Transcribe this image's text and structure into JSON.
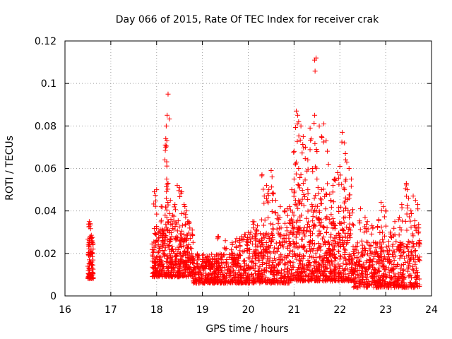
{
  "chart_data": {
    "type": "scatter",
    "title": "Day 066 of 2015, Rate Of TEC Index for receiver crak",
    "xlabel": "GPS time / hours",
    "ylabel": "ROTI / TECUs",
    "xlim": [
      16,
      24
    ],
    "ylim": [
      0,
      0.12
    ],
    "xticks": [
      "16",
      "17",
      "18",
      "19",
      "20",
      "21",
      "22",
      "23",
      "24"
    ],
    "yticks": [
      "0",
      "0.02",
      "0.04",
      "0.06",
      "0.08",
      "0.1",
      "0.12"
    ],
    "xtick_values": [
      16,
      17,
      18,
      19,
      20,
      21,
      22,
      23,
      24
    ],
    "ytick_values": [
      0,
      0.02,
      0.04,
      0.06,
      0.08,
      0.1,
      0.12
    ],
    "grid": true,
    "marker": "+",
    "color": "#ff0000",
    "series": [
      {
        "name": "ROTI",
        "clusters": [
          {
            "x0": 16.5,
            "x1": 16.62,
            "lo": 0.008,
            "hi": 0.028,
            "n": 90,
            "spikes": [
              [
                16.53,
                0.035
              ],
              [
                16.55,
                0.034
              ],
              [
                16.58,
                0.027
              ]
            ]
          },
          {
            "x0": 17.9,
            "x1": 18.8,
            "lo": 0.009,
            "hi": 0.032,
            "n": 420,
            "spikes": [
              [
                18.25,
                0.095
              ],
              [
                18.23,
                0.085
              ],
              [
                18.21,
                0.08
              ],
              [
                18.2,
                0.074
              ],
              [
                18.19,
                0.071
              ],
              [
                18.2,
                0.07
              ],
              [
                17.95,
                0.049
              ],
              [
                18.0,
                0.05
              ],
              [
                18.22,
                0.055
              ],
              [
                18.25,
                0.053
              ],
              [
                18.45,
                0.052
              ],
              [
                18.5,
                0.051
              ],
              [
                18.55,
                0.049
              ],
              [
                18.6,
                0.043
              ],
              [
                18.65,
                0.04
              ],
              [
                18.3,
                0.045
              ],
              [
                18.4,
                0.043
              ],
              [
                18.1,
                0.042
              ],
              [
                18.35,
                0.038
              ],
              [
                18.7,
                0.035
              ]
            ]
          },
          {
            "x0": 18.8,
            "x1": 19.8,
            "lo": 0.006,
            "hi": 0.02,
            "n": 380,
            "spikes": [
              [
                19.35,
                0.028
              ],
              [
                19.5,
                0.026
              ],
              [
                19.65,
                0.025
              ],
              [
                19.75,
                0.027
              ]
            ]
          },
          {
            "x0": 19.8,
            "x1": 20.9,
            "lo": 0.006,
            "hi": 0.03,
            "n": 440,
            "spikes": [
              [
                20.3,
                0.057
              ],
              [
                20.4,
                0.052
              ],
              [
                20.45,
                0.05
              ],
              [
                20.5,
                0.059
              ],
              [
                20.52,
                0.056
              ],
              [
                20.55,
                0.048
              ],
              [
                20.6,
                0.045
              ],
              [
                20.35,
                0.047
              ],
              [
                20.7,
                0.042
              ],
              [
                20.8,
                0.04
              ],
              [
                20.85,
                0.041
              ],
              [
                20.65,
                0.038
              ],
              [
                20.9,
                0.042
              ],
              [
                20.1,
                0.035
              ],
              [
                20.2,
                0.033
              ]
            ]
          },
          {
            "x0": 20.9,
            "x1": 22.3,
            "lo": 0.007,
            "hi": 0.035,
            "n": 560,
            "spikes": [
              [
                21.45,
                0.111
              ],
              [
                21.48,
                0.112
              ],
              [
                21.05,
                0.087
              ],
              [
                21.08,
                0.085
              ],
              [
                21.1,
                0.082
              ],
              [
                21.15,
                0.08
              ],
              [
                21.35,
                0.079
              ],
              [
                21.45,
                0.085
              ],
              [
                21.55,
                0.08
              ],
              [
                21.6,
                0.075
              ],
              [
                21.65,
                0.081
              ],
              [
                21.7,
                0.073
              ],
              [
                21.2,
                0.075
              ],
              [
                21.25,
                0.07
              ],
              [
                21.3,
                0.064
              ],
              [
                21.4,
                0.06
              ],
              [
                21.5,
                0.068
              ],
              [
                21.75,
                0.062
              ],
              [
                21.0,
                0.068
              ],
              [
                21.05,
                0.063
              ],
              [
                21.1,
                0.06
              ],
              [
                21.15,
                0.057
              ],
              [
                21.2,
                0.053
              ],
              [
                22.05,
                0.077
              ],
              [
                22.1,
                0.072
              ],
              [
                22.12,
                0.067
              ],
              [
                22.15,
                0.063
              ],
              [
                22.2,
                0.06
              ],
              [
                22.0,
                0.061
              ],
              [
                21.95,
                0.058
              ],
              [
                21.9,
                0.055
              ],
              [
                21.85,
                0.052
              ],
              [
                22.25,
                0.055
              ],
              [
                21.5,
                0.055
              ],
              [
                21.6,
                0.05
              ],
              [
                21.7,
                0.048
              ],
              [
                21.8,
                0.045
              ],
              [
                21.3,
                0.05
              ],
              [
                21.1,
                0.045
              ],
              [
                20.95,
                0.05
              ],
              [
                21.0,
                0.055
              ],
              [
                22.1,
                0.05
              ],
              [
                22.2,
                0.046
              ],
              [
                21.4,
                0.042
              ],
              [
                21.55,
                0.04
              ]
            ]
          },
          {
            "x0": 22.3,
            "x1": 23.75,
            "lo": 0.004,
            "hi": 0.026,
            "n": 520,
            "spikes": [
              [
                22.45,
                0.041
              ],
              [
                22.55,
                0.037
              ],
              [
                22.6,
                0.035
              ],
              [
                22.9,
                0.044
              ],
              [
                22.95,
                0.042
              ],
              [
                23.0,
                0.04
              ],
              [
                22.85,
                0.036
              ],
              [
                23.35,
                0.043
              ],
              [
                23.45,
                0.053
              ],
              [
                23.47,
                0.05
              ],
              [
                23.5,
                0.046
              ],
              [
                23.6,
                0.047
              ],
              [
                23.65,
                0.045
              ],
              [
                23.7,
                0.043
              ],
              [
                23.55,
                0.04
              ],
              [
                23.3,
                0.037
              ],
              [
                23.2,
                0.035
              ],
              [
                22.7,
                0.033
              ],
              [
                23.1,
                0.03
              ],
              [
                23.72,
                0.032
              ]
            ]
          }
        ]
      }
    ]
  }
}
